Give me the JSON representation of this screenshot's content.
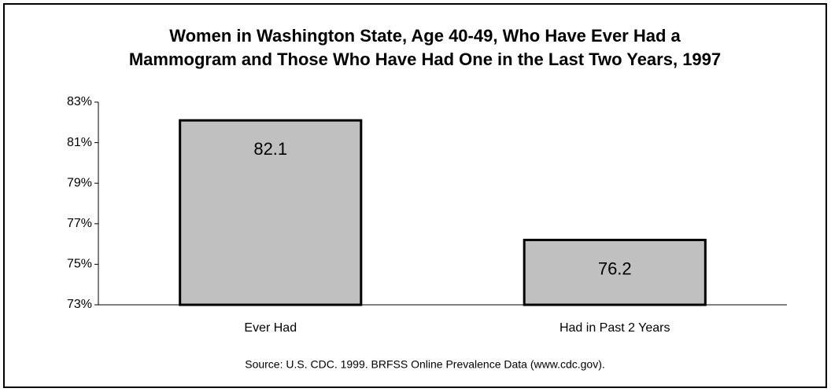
{
  "chart_data": {
    "type": "bar",
    "title": [
      "Women in Washington State, Age 40-49, Who Have Ever Had a",
      "Mammogram and Those Who Have Had One in the Last Two Years, 1997"
    ],
    "categories": [
      "Ever Had",
      "Had in Past 2 Years"
    ],
    "values": [
      82.1,
      76.2
    ],
    "color": "#c0c0c0",
    "ylim": [
      73,
      83
    ],
    "yticks": [
      {
        "value": 73,
        "label": "73%"
      },
      {
        "value": 75,
        "label": "75%"
      },
      {
        "value": 77,
        "label": "77%"
      },
      {
        "value": 79,
        "label": "79%"
      },
      {
        "value": 81,
        "label": "81%"
      },
      {
        "value": 83,
        "label": "83%"
      }
    ],
    "source": "Source: U.S. CDC. 1999. BRFSS Online Prevalence Data (www.cdc.gov)."
  }
}
